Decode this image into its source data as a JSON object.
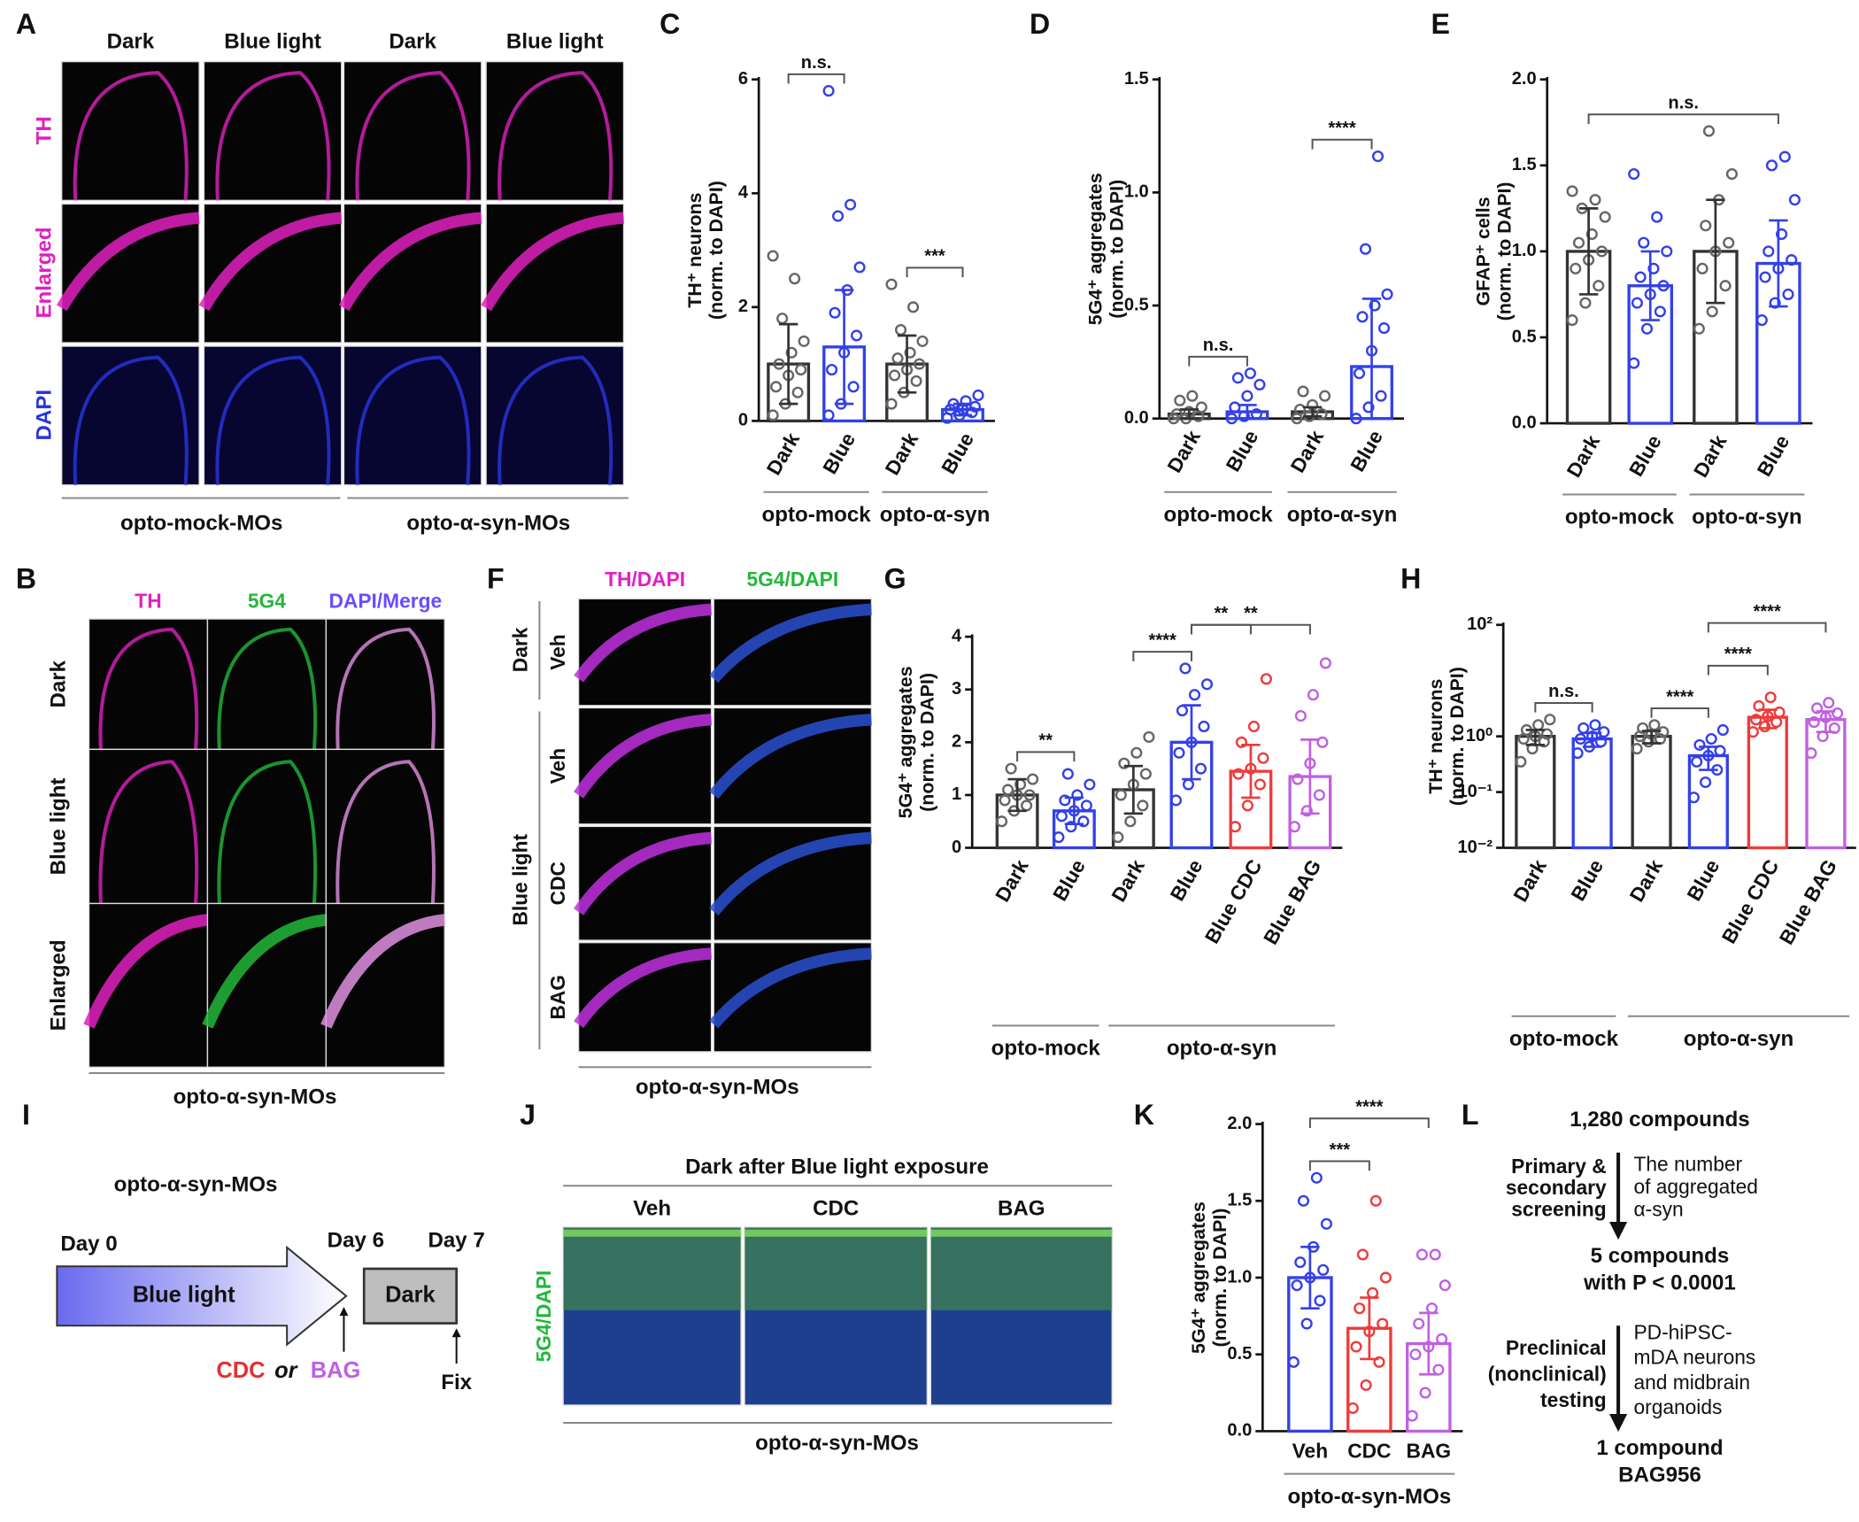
{
  "figure": {
    "panel_a": {
      "letter": "A",
      "columns": [
        "Dark",
        "Blue light",
        "Dark",
        "Blue light"
      ],
      "rows": [
        "TH",
        "Enlarged",
        "DAPI"
      ],
      "groups": [
        "opto-mock-MOs",
        "opto-α-syn-MOs"
      ]
    },
    "panel_b": {
      "letter": "B",
      "columns": [
        "TH",
        "5G4",
        "DAPI/Merge"
      ],
      "rows": [
        "Dark",
        "Blue light",
        "Enlarged"
      ],
      "caption": "opto-α-syn-MOs"
    },
    "panel_f": {
      "letter": "F",
      "columns": [
        "TH/DAPI",
        "5G4/DAPI"
      ],
      "conditions": [
        "Dark",
        "Blue light"
      ],
      "rows": [
        "Veh",
        "Veh",
        "CDC",
        "BAG"
      ],
      "caption": "opto-α-syn-MOs"
    },
    "panel_i": {
      "letter": "I",
      "title": "opto-α-syn-MOs",
      "days": [
        "Day 0",
        "Day 6",
        "Day 7"
      ],
      "phases": [
        "Blue light",
        "Dark"
      ],
      "treatment": [
        "CDC",
        "or",
        "BAG"
      ],
      "fix": "Fix"
    },
    "panel_j": {
      "letter": "J",
      "title": "Dark after Blue light exposure",
      "columns": [
        "Veh",
        "CDC",
        "BAG"
      ],
      "stain": "5G4/DAPI",
      "caption": "opto-α-syn-MOs"
    },
    "panel_l": {
      "letter": "L",
      "start": "1,280 compounds",
      "stage1": {
        "method": [
          "Primary &",
          "secondary",
          "screening"
        ],
        "criterion": [
          "The number",
          "of aggregated",
          "α-syn"
        ]
      },
      "result1": [
        "5 compounds",
        "with P < 0.0001"
      ],
      "stage2": {
        "method": [
          "Preclinical",
          "(nonclinical)",
          "testing"
        ],
        "criterion": [
          "PD-hiPSC-",
          "mDA neurons",
          "and midbrain",
          "organoids"
        ]
      },
      "result2": [
        "1 compound",
        "BAG956"
      ]
    }
  },
  "chart_data": [
    {
      "type": "bar",
      "letter": "C",
      "ylabel": [
        "TH⁺ neurons",
        "(norm. to DAPI)"
      ],
      "categories": [
        "Dark",
        "Blue",
        "Dark",
        "Blue"
      ],
      "colors": [
        "#333333",
        "#3340e8",
        "#333333",
        "#3340e8"
      ],
      "values": [
        1.0,
        1.3,
        1.0,
        0.2
      ],
      "errors": [
        0.7,
        1.0,
        0.5,
        0.1
      ],
      "points": [
        [
          0.1,
          0.3,
          0.5,
          0.6,
          0.8,
          0.9,
          1.0,
          1.2,
          1.4,
          1.8,
          2.5,
          2.9
        ],
        [
          0.1,
          0.3,
          0.6,
          0.9,
          1.2,
          1.5,
          1.9,
          2.3,
          2.7,
          3.6,
          3.8,
          5.8
        ],
        [
          0.3,
          0.5,
          0.7,
          0.8,
          0.9,
          1.0,
          1.1,
          1.2,
          1.4,
          1.6,
          2.0,
          2.4
        ],
        [
          0.05,
          0.1,
          0.15,
          0.2,
          0.2,
          0.25,
          0.3,
          0.35,
          0.45
        ]
      ],
      "ylim": [
        0,
        6
      ],
      "yticks": [
        0,
        2,
        4,
        6
      ],
      "annotations": [
        {
          "from": 0,
          "to": 1,
          "text": "n.s."
        },
        {
          "from": 2,
          "to": 3,
          "text": "***"
        }
      ],
      "groups": [
        {
          "name": "opto-mock",
          "size": 2
        },
        {
          "name": "opto-α-syn",
          "size": 2
        }
      ]
    },
    {
      "type": "bar",
      "letter": "D",
      "ylabel": [
        "5G4⁺ aggregates",
        "(norm. to DAPI)"
      ],
      "categories": [
        "Dark",
        "Blue",
        "Dark",
        "Blue"
      ],
      "colors": [
        "#333333",
        "#3340e8",
        "#333333",
        "#3340e8"
      ],
      "values": [
        0.02,
        0.03,
        0.03,
        0.23
      ],
      "errors": [
        0.02,
        0.03,
        0.02,
        0.3
      ],
      "points": [
        [
          0,
          0,
          0.01,
          0.02,
          0.03,
          0.05,
          0.08,
          0.1
        ],
        [
          0,
          0.01,
          0.02,
          0.05,
          0.1,
          0.15,
          0.18,
          0.2
        ],
        [
          0,
          0.01,
          0.02,
          0.04,
          0.06,
          0.1,
          0.12
        ],
        [
          0,
          0.05,
          0.1,
          0.2,
          0.3,
          0.4,
          0.45,
          0.5,
          0.55,
          0.75,
          1.16
        ]
      ],
      "ylim": [
        0,
        1.5
      ],
      "yticks": [
        {
          "value": 0,
          "label": "0.0"
        },
        0.5,
        {
          "value": 1,
          "label": "1.0"
        },
        1.5
      ],
      "annotations": [
        {
          "from": 0,
          "to": 1,
          "text": "n.s."
        },
        {
          "from": 2,
          "to": 3,
          "text": "****"
        }
      ],
      "groups": [
        {
          "name": "opto-mock",
          "size": 2
        },
        {
          "name": "opto-α-syn",
          "size": 2
        }
      ]
    },
    {
      "type": "bar",
      "letter": "E",
      "ylabel": [
        "GFAP⁺ cells",
        "(norm. to DAPI)"
      ],
      "categories": [
        "Dark",
        "Blue",
        "Dark",
        "Blue"
      ],
      "colors": [
        "#333333",
        "#3340e8",
        "#333333",
        "#3340e8"
      ],
      "values": [
        1.0,
        0.8,
        1.0,
        0.93
      ],
      "errors": [
        0.25,
        0.2,
        0.3,
        0.25
      ],
      "points": [
        [
          0.6,
          0.7,
          0.8,
          0.9,
          0.95,
          1.0,
          1.05,
          1.1,
          1.2,
          1.25,
          1.3,
          1.35
        ],
        [
          0.35,
          0.55,
          0.65,
          0.7,
          0.75,
          0.8,
          0.85,
          0.9,
          1.0,
          1.05,
          1.2,
          1.45
        ],
        [
          0.55,
          0.65,
          0.8,
          0.9,
          1.0,
          1.05,
          1.15,
          1.3,
          1.45,
          1.7
        ],
        [
          0.6,
          0.7,
          0.75,
          0.85,
          0.9,
          0.95,
          1.0,
          1.1,
          1.3,
          1.5,
          1.55
        ]
      ],
      "ylim": [
        0,
        2
      ],
      "yticks": [
        {
          "value": 0,
          "label": "0.0"
        },
        0.5,
        {
          "value": 1,
          "label": "1.0"
        },
        1.5,
        {
          "value": 2,
          "label": "2.0"
        }
      ],
      "annotations": [
        {
          "from": 0,
          "to": 3,
          "text": "n.s."
        }
      ],
      "groups": [
        {
          "name": "opto-mock",
          "size": 2
        },
        {
          "name": "opto-α-syn",
          "size": 2
        }
      ]
    },
    {
      "type": "bar",
      "letter": "G",
      "ylabel": [
        "5G4⁺ aggregates",
        "(norm. to DAPI)"
      ],
      "categories": [
        "Dark",
        "Blue",
        "Dark",
        "Blue",
        "Blue CDC",
        "Blue BAG"
      ],
      "colors": [
        "#333333",
        "#3340e8",
        "#333333",
        "#3340e8",
        "#ee3b3b",
        "#c060e0"
      ],
      "values": [
        1.0,
        0.7,
        1.1,
        2.0,
        1.45,
        1.35
      ],
      "errors": [
        0.3,
        0.25,
        0.45,
        0.7,
        0.5,
        0.7
      ],
      "points": [
        [
          0.5,
          0.7,
          0.8,
          0.9,
          1.0,
          1.0,
          1.1,
          1.2,
          1.3,
          1.5
        ],
        [
          0.2,
          0.4,
          0.5,
          0.6,
          0.7,
          0.8,
          0.9,
          1.0,
          1.2,
          1.4
        ],
        [
          0.2,
          0.5,
          0.8,
          1.0,
          1.2,
          1.4,
          1.6,
          1.8,
          2.1
        ],
        [
          0.9,
          1.2,
          1.5,
          1.8,
          2.0,
          2.3,
          2.6,
          2.9,
          3.1,
          3.4
        ],
        [
          0.4,
          0.8,
          1.2,
          1.4,
          1.5,
          1.7,
          2.0,
          2.3,
          3.2
        ],
        [
          0.4,
          0.7,
          1.0,
          1.3,
          1.6,
          2.0,
          2.5,
          2.9,
          3.5
        ]
      ],
      "ylim": [
        0,
        4
      ],
      "yticks": [
        0,
        1,
        2,
        3,
        4
      ],
      "annotations": [
        {
          "from": 0,
          "to": 1,
          "text": "**"
        },
        {
          "from": 2,
          "to": 3,
          "text": "****"
        },
        {
          "from": 3,
          "to": 4,
          "text": "**"
        },
        {
          "from": 3,
          "to": 5,
          "text": "**"
        }
      ],
      "groups": [
        {
          "name": "opto-mock",
          "size": 2
        },
        {
          "name": "opto-α-syn",
          "size": 4
        }
      ]
    },
    {
      "type": "bar",
      "letter": "H",
      "ylabel": [
        "TH⁺ neurons",
        "(norm. to DAPI)"
      ],
      "log_scale": true,
      "categories": [
        "Dark",
        "Blue",
        "Dark",
        "Blue",
        "Blue CDC",
        "Blue BAG"
      ],
      "colors": [
        "#333333",
        "#3340e8",
        "#333333",
        "#3340e8",
        "#ee3b3b",
        "#c060e0"
      ],
      "values": [
        1.0,
        0.9,
        1.0,
        0.45,
        2.2,
        2.0
      ],
      "errors": [
        0.3,
        0.25,
        0.25,
        0.2,
        0.8,
        0.8
      ],
      "points": [
        [
          0.35,
          0.6,
          0.8,
          0.9,
          1.0,
          1.1,
          1.3,
          1.6,
          2.0
        ],
        [
          0.5,
          0.65,
          0.8,
          0.9,
          1.0,
          1.2,
          1.4,
          1.6
        ],
        [
          0.6,
          0.8,
          0.9,
          1.0,
          1.1,
          1.2,
          1.4,
          1.6
        ],
        [
          0.08,
          0.15,
          0.25,
          0.35,
          0.45,
          0.55,
          0.7,
          0.9,
          1.3
        ],
        [
          1.2,
          1.5,
          1.8,
          2.0,
          2.3,
          2.7,
          3.5,
          5.0
        ],
        [
          0.5,
          1.0,
          1.4,
          1.8,
          2.2,
          2.6,
          3.2,
          4.0
        ]
      ],
      "ylim": [
        0.01,
        100
      ],
      "yticks": [
        {
          "value": 0.01,
          "label": "10⁻²"
        },
        {
          "value": 0.1,
          "label": "10⁻¹"
        },
        {
          "value": 1,
          "label": "10⁰"
        },
        {
          "value": 100,
          "label": "10²"
        }
      ],
      "annotations": [
        {
          "from": 0,
          "to": 1,
          "text": "n.s."
        },
        {
          "from": 2,
          "to": 3,
          "text": "****"
        },
        {
          "from": 3,
          "to": 4,
          "text": "****"
        },
        {
          "from": 3,
          "to": 5,
          "text": "****"
        }
      ],
      "groups": [
        {
          "name": "opto-mock",
          "size": 2
        },
        {
          "name": "opto-α-syn",
          "size": 4
        }
      ]
    },
    {
      "type": "bar",
      "letter": "K",
      "ylabel": [
        "5G4⁺ aggregates",
        "(norm. to DAPI)"
      ],
      "categories": [
        "Veh",
        "CDC",
        "BAG"
      ],
      "colors": [
        "#3340e8",
        "#ee3b3b",
        "#c060e0"
      ],
      "values": [
        1.0,
        0.67,
        0.57
      ],
      "errors": [
        0.2,
        0.2,
        0.2
      ],
      "points": [
        [
          0.45,
          0.7,
          0.85,
          0.95,
          1.0,
          1.05,
          1.1,
          1.2,
          1.35,
          1.5,
          1.65
        ],
        [
          0.15,
          0.3,
          0.45,
          0.55,
          0.65,
          0.7,
          0.8,
          0.9,
          1.0,
          1.15,
          1.5
        ],
        [
          0.1,
          0.25,
          0.4,
          0.5,
          0.55,
          0.6,
          0.7,
          0.8,
          0.95,
          1.15,
          1.15
        ]
      ],
      "ylim": [
        0,
        2
      ],
      "yticks": [
        {
          "value": 0,
          "label": "0.0"
        },
        0.5,
        {
          "value": 1,
          "label": "1.0"
        },
        1.5,
        {
          "value": 2,
          "label": "2.0"
        }
      ],
      "annotations": [
        {
          "from": 0,
          "to": 1,
          "text": "***"
        },
        {
          "from": 0,
          "to": 2,
          "text": "****"
        }
      ],
      "groups": [
        {
          "name": "opto-α-syn-MOs",
          "size": 3
        }
      ]
    }
  ]
}
